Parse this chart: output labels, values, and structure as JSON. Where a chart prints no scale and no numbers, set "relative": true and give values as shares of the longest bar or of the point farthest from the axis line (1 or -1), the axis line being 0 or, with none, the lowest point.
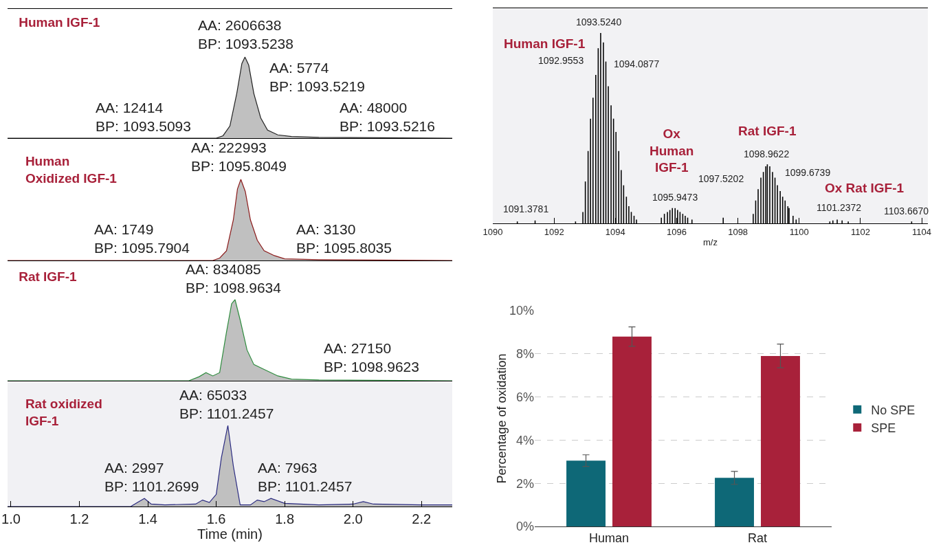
{
  "chart_data": [
    {
      "type": "area",
      "title": "Human IGF-1",
      "relative": true,
      "tick_labels": false,
      "grid": false,
      "xlim": [
        0.99,
        2.29
      ],
      "series": [
        {
          "color": "#222222",
          "x": [
            0.99,
            1.6,
            1.62,
            1.64,
            1.66,
            1.675,
            1.684,
            1.695,
            1.71,
            1.73,
            1.75,
            1.78,
            1.82,
            1.9,
            2.29
          ],
          "values": [
            0,
            0,
            0.03,
            0.15,
            0.55,
            0.92,
            1,
            0.9,
            0.55,
            0.25,
            0.1,
            0.04,
            0.02,
            0.01,
            0
          ]
        }
      ],
      "annotations": [
        "AA: 2606638\nBP: 1093.5238",
        "AA: 5774\nBP: 1093.5219",
        "AA: 12414\nBP: 1093.5093",
        "AA: 48000\nBP: 1093.5216"
      ]
    },
    {
      "type": "area",
      "title": "Human\nOxidized IGF-1",
      "relative": true,
      "tick_labels": false,
      "grid": false,
      "xlim": [
        0.99,
        2.29
      ],
      "series": [
        {
          "color": "#8b1a1a",
          "x": [
            0.99,
            1.59,
            1.61,
            1.63,
            1.65,
            1.662,
            1.672,
            1.685,
            1.7,
            1.72,
            1.74,
            1.77,
            1.8,
            1.9,
            2.29
          ],
          "values": [
            0,
            0,
            0.03,
            0.12,
            0.5,
            0.88,
            1,
            0.85,
            0.5,
            0.25,
            0.12,
            0.06,
            0.02,
            0.01,
            0
          ]
        }
      ],
      "annotations": [
        "AA: 222993\nBP: 1095.8049",
        "AA: 1749\nBP: 1095.7904",
        "AA: 3130\nBP: 1095.8035"
      ]
    },
    {
      "type": "area",
      "title": "Rat IGF-1",
      "relative": true,
      "tick_labels": false,
      "grid": false,
      "xlim": [
        0.99,
        2.29
      ],
      "series": [
        {
          "color": "#2e8b3e",
          "x": [
            0.99,
            1.52,
            1.55,
            1.57,
            1.59,
            1.61,
            1.63,
            1.645,
            1.655,
            1.67,
            1.69,
            1.71,
            1.74,
            1.78,
            1.82,
            1.9,
            2.29
          ],
          "values": [
            0,
            0,
            0.05,
            0.1,
            0.06,
            0.1,
            0.6,
            0.95,
            1,
            0.75,
            0.38,
            0.2,
            0.14,
            0.06,
            0.02,
            0.01,
            0
          ]
        }
      ],
      "annotations": [
        "AA: 834085\nBP: 1098.9634",
        "AA: 27150\nBP: 1098.9623"
      ]
    },
    {
      "type": "area",
      "title": "Rat oxidized\nIGF-1",
      "xlabel": "Time (min)",
      "relative": true,
      "tick_labels": "x",
      "grid": false,
      "xlim": [
        0.99,
        2.29
      ],
      "xticks": [
        {
          "value": 1,
          "label": "1.0"
        },
        1.2,
        1.4,
        1.6,
        1.8,
        {
          "value": 2,
          "label": "2.0"
        },
        2.2
      ],
      "series": [
        {
          "color": "#2a2a80",
          "x": [
            0.99,
            1.35,
            1.37,
            1.39,
            1.41,
            1.45,
            1.54,
            1.56,
            1.58,
            1.6,
            1.615,
            1.634,
            1.65,
            1.67,
            1.7,
            1.72,
            1.74,
            1.76,
            1.8,
            1.9,
            2.0,
            2.03,
            2.06,
            2.2,
            2.29
          ],
          "values": [
            0,
            0,
            0.05,
            0.1,
            0.03,
            0.02,
            0.03,
            0.08,
            0.05,
            0.15,
            0.6,
            1,
            0.5,
            0.02,
            0.02,
            0.08,
            0.06,
            0.1,
            0.04,
            0.02,
            0.03,
            0.06,
            0.03,
            0.02,
            0.02
          ]
        }
      ],
      "annotations": [
        "AA: 65033\nBP: 1101.2457",
        "AA: 2997\nBP: 1101.2699",
        "AA: 7963\nBP: 1101.2457"
      ]
    },
    {
      "type": "bar",
      "xlabel": "m/z",
      "relative": true,
      "grid": false,
      "tick_labels": "x",
      "xlim": [
        1090,
        1104.2
      ],
      "xticks": [
        1090,
        1092,
        1094,
        1096,
        1098,
        1100,
        1102,
        1104
      ],
      "series": [
        {
          "color": "#000000",
          "x": [
            1090.8,
            1091.38,
            1092.7,
            1092.94,
            1093.02,
            1093.11,
            1093.19,
            1093.27,
            1093.36,
            1093.44,
            1093.52,
            1093.61,
            1093.69,
            1093.77,
            1093.86,
            1093.94,
            1094.02,
            1094.11,
            1094.19,
            1094.27,
            1094.36,
            1094.44,
            1094.52,
            1094.61,
            1094.69,
            1095.5,
            1095.6,
            1095.7,
            1095.78,
            1095.86,
            1095.95,
            1096.03,
            1096.11,
            1096.2,
            1096.28,
            1096.36,
            1096.5,
            1097.52,
            1098.5,
            1098.58,
            1098.66,
            1098.75,
            1098.83,
            1098.91,
            1098.96,
            1099.04,
            1099.13,
            1099.21,
            1099.29,
            1099.38,
            1099.46,
            1099.54,
            1099.63,
            1099.67,
            1099.8,
            1099.9,
            1101.0,
            1101.1,
            1101.24,
            1101.4,
            1101.6,
            1103.67
          ],
          "values": [
            0.01,
            0.015,
            0.01,
            0.06,
            0.22,
            0.38,
            0.55,
            0.66,
            0.78,
            0.92,
            1,
            0.95,
            0.85,
            0.72,
            0.62,
            0.55,
            0.48,
            0.38,
            0.28,
            0.2,
            0.14,
            0.09,
            0.06,
            0.04,
            0.02,
            0.03,
            0.05,
            0.06,
            0.07,
            0.08,
            0.08,
            0.07,
            0.06,
            0.05,
            0.04,
            0.03,
            0.02,
            0.03,
            0.05,
            0.12,
            0.18,
            0.24,
            0.27,
            0.3,
            0.31,
            0.3,
            0.27,
            0.24,
            0.2,
            0.17,
            0.14,
            0.12,
            0.09,
            0.08,
            0.04,
            0.02,
            0.01,
            0.015,
            0.02,
            0.015,
            0.01,
            0.01
          ]
        }
      ],
      "annotations": [
        "1093.5240",
        "1092.9553",
        "1094.0877",
        "1095.9473",
        "1097.5202",
        "1098.9622",
        "1099.6739",
        "1101.2372",
        "1103.6670",
        "1091.3781",
        "Human IGF-1",
        "Ox\nHuman\nIGF-1",
        "Rat IGF-1",
        "Ox Rat IGF-1"
      ]
    },
    {
      "type": "bar",
      "ylabel": "Percentage of oxidation",
      "categories": [
        "Human",
        "Rat"
      ],
      "ylim": [
        0,
        10
      ],
      "yticks": [
        {
          "value": 0,
          "label": "0%"
        },
        {
          "value": 2,
          "label": "2%"
        },
        {
          "value": 4,
          "label": "4%"
        },
        {
          "value": 6,
          "label": "6%"
        },
        {
          "value": 8,
          "label": "8%"
        },
        {
          "value": 10,
          "label": "10%"
        }
      ],
      "grid": "y",
      "legend": "right",
      "series": [
        {
          "name": "No SPE",
          "color": "#0e6877",
          "values": [
            3.05,
            2.25
          ],
          "errors": [
            0.27,
            0.3
          ]
        },
        {
          "name": "SPE",
          "color": "#a8213a",
          "values": [
            8.8,
            7.9
          ],
          "errors": [
            0.45,
            0.55
          ]
        }
      ]
    }
  ]
}
